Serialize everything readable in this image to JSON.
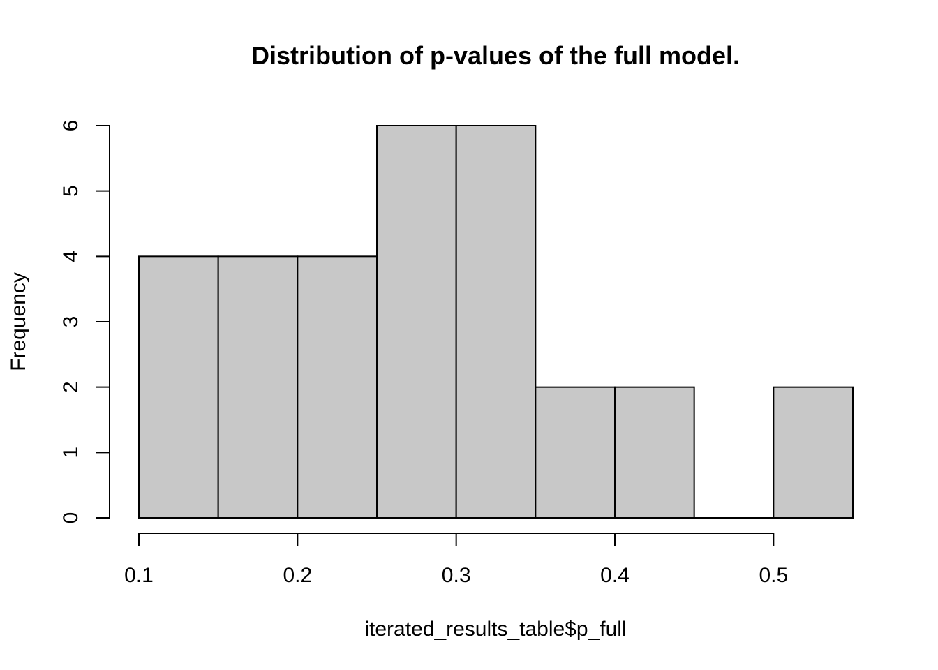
{
  "chart_data": {
    "type": "bar",
    "title": "Distribution of p-values of the full model.",
    "xlabel": "iterated_results_table$p_full",
    "ylabel": "Frequency",
    "bin_edges": [
      0.1,
      0.15,
      0.2,
      0.25,
      0.3,
      0.35,
      0.4,
      0.45,
      0.5,
      0.55
    ],
    "values": [
      4,
      4,
      4,
      6,
      6,
      2,
      2,
      0,
      2
    ],
    "xlim": [
      0.1,
      0.55
    ],
    "ylim": [
      0,
      6
    ],
    "x_ticks": [
      0.1,
      0.2,
      0.3,
      0.4,
      0.5
    ],
    "x_tick_labels": [
      "0.1",
      "0.2",
      "0.3",
      "0.4",
      "0.5"
    ],
    "y_ticks": [
      0,
      1,
      2,
      3,
      4,
      5,
      6
    ],
    "y_tick_labels": [
      "0",
      "1",
      "2",
      "3",
      "4",
      "5",
      "6"
    ],
    "bar_color": "#c8c8c8",
    "grid": false,
    "legend": "none"
  }
}
